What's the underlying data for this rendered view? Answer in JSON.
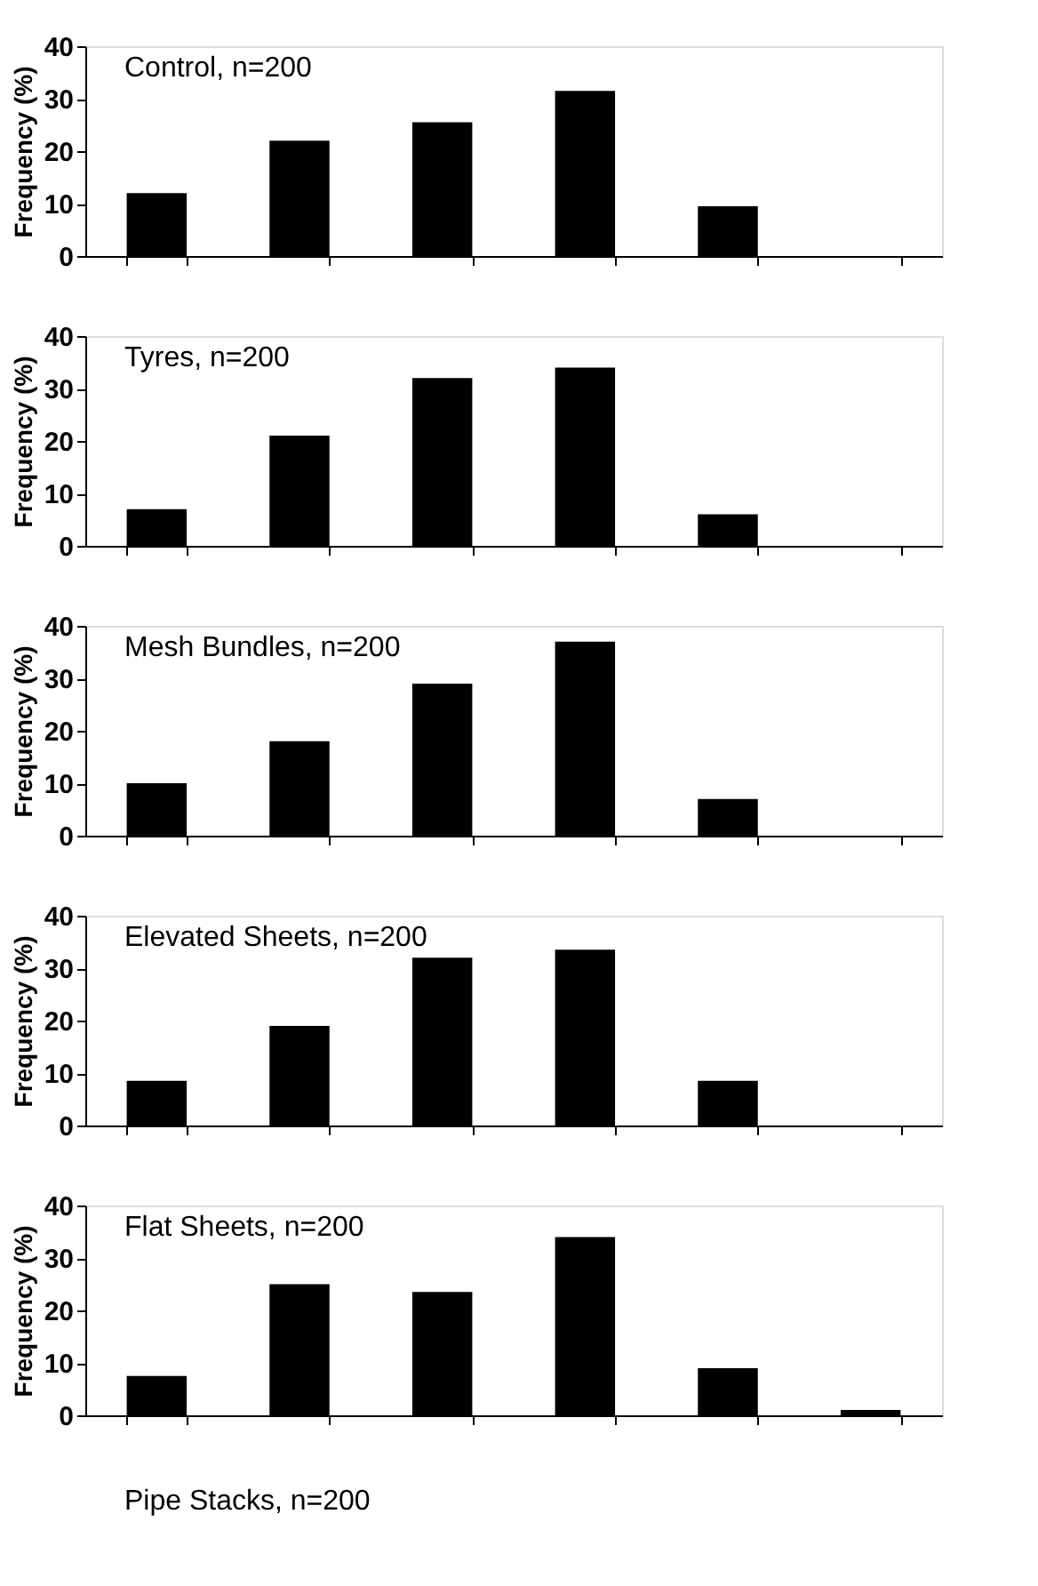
{
  "chart_data": [
    {
      "type": "bar",
      "title": "Control, n=200",
      "ylabel": "Frequency (%)",
      "categories": [
        null,
        null,
        null,
        null,
        null,
        null
      ],
      "values": [
        12,
        22,
        25.5,
        31.5,
        9.5,
        null
      ],
      "color": "#000000",
      "ylim": [
        0,
        40
      ],
      "yticks": [
        0,
        10,
        20,
        30,
        40
      ],
      "tick_labels": "y",
      "grid": false
    },
    {
      "type": "bar",
      "title": "Tyres, n=200",
      "ylabel": "Frequency (%)",
      "categories": [
        null,
        null,
        null,
        null,
        null,
        null
      ],
      "values": [
        7,
        21,
        32,
        34,
        6,
        null
      ],
      "color": "#000000",
      "ylim": [
        0,
        40
      ],
      "yticks": [
        0,
        10,
        20,
        30,
        40
      ],
      "tick_labels": "y",
      "grid": false
    },
    {
      "type": "bar",
      "title": "Mesh Bundles, n=200",
      "ylabel": "Frequency (%)",
      "categories": [
        null,
        null,
        null,
        null,
        null,
        null
      ],
      "values": [
        10,
        18,
        29,
        37,
        7,
        null
      ],
      "color": "#000000",
      "ylim": [
        0,
        40
      ],
      "yticks": [
        0,
        10,
        20,
        30,
        40
      ],
      "tick_labels": "y",
      "grid": false
    },
    {
      "type": "bar",
      "title": "Elevated Sheets, n=200",
      "ylabel": "Frequency (%)",
      "categories": [
        null,
        null,
        null,
        null,
        null,
        null
      ],
      "values": [
        8.5,
        19,
        32,
        33.5,
        8.5,
        null
      ],
      "color": "#000000",
      "ylim": [
        0,
        40
      ],
      "yticks": [
        0,
        10,
        20,
        30,
        40
      ],
      "tick_labels": "y",
      "grid": false
    },
    {
      "type": "bar",
      "title": "Flat Sheets, n=200",
      "ylabel": "Frequency (%)",
      "categories": [
        null,
        null,
        null,
        null,
        null,
        null
      ],
      "values": [
        7.5,
        25,
        23.5,
        34,
        9,
        1
      ],
      "color": "#000000",
      "ylim": [
        0,
        40
      ],
      "yticks": [
        0,
        10,
        20,
        30,
        40
      ],
      "tick_labels": "y",
      "grid": false,
      "annotations": [
        "Pipe Stacks, n=200"
      ]
    }
  ]
}
